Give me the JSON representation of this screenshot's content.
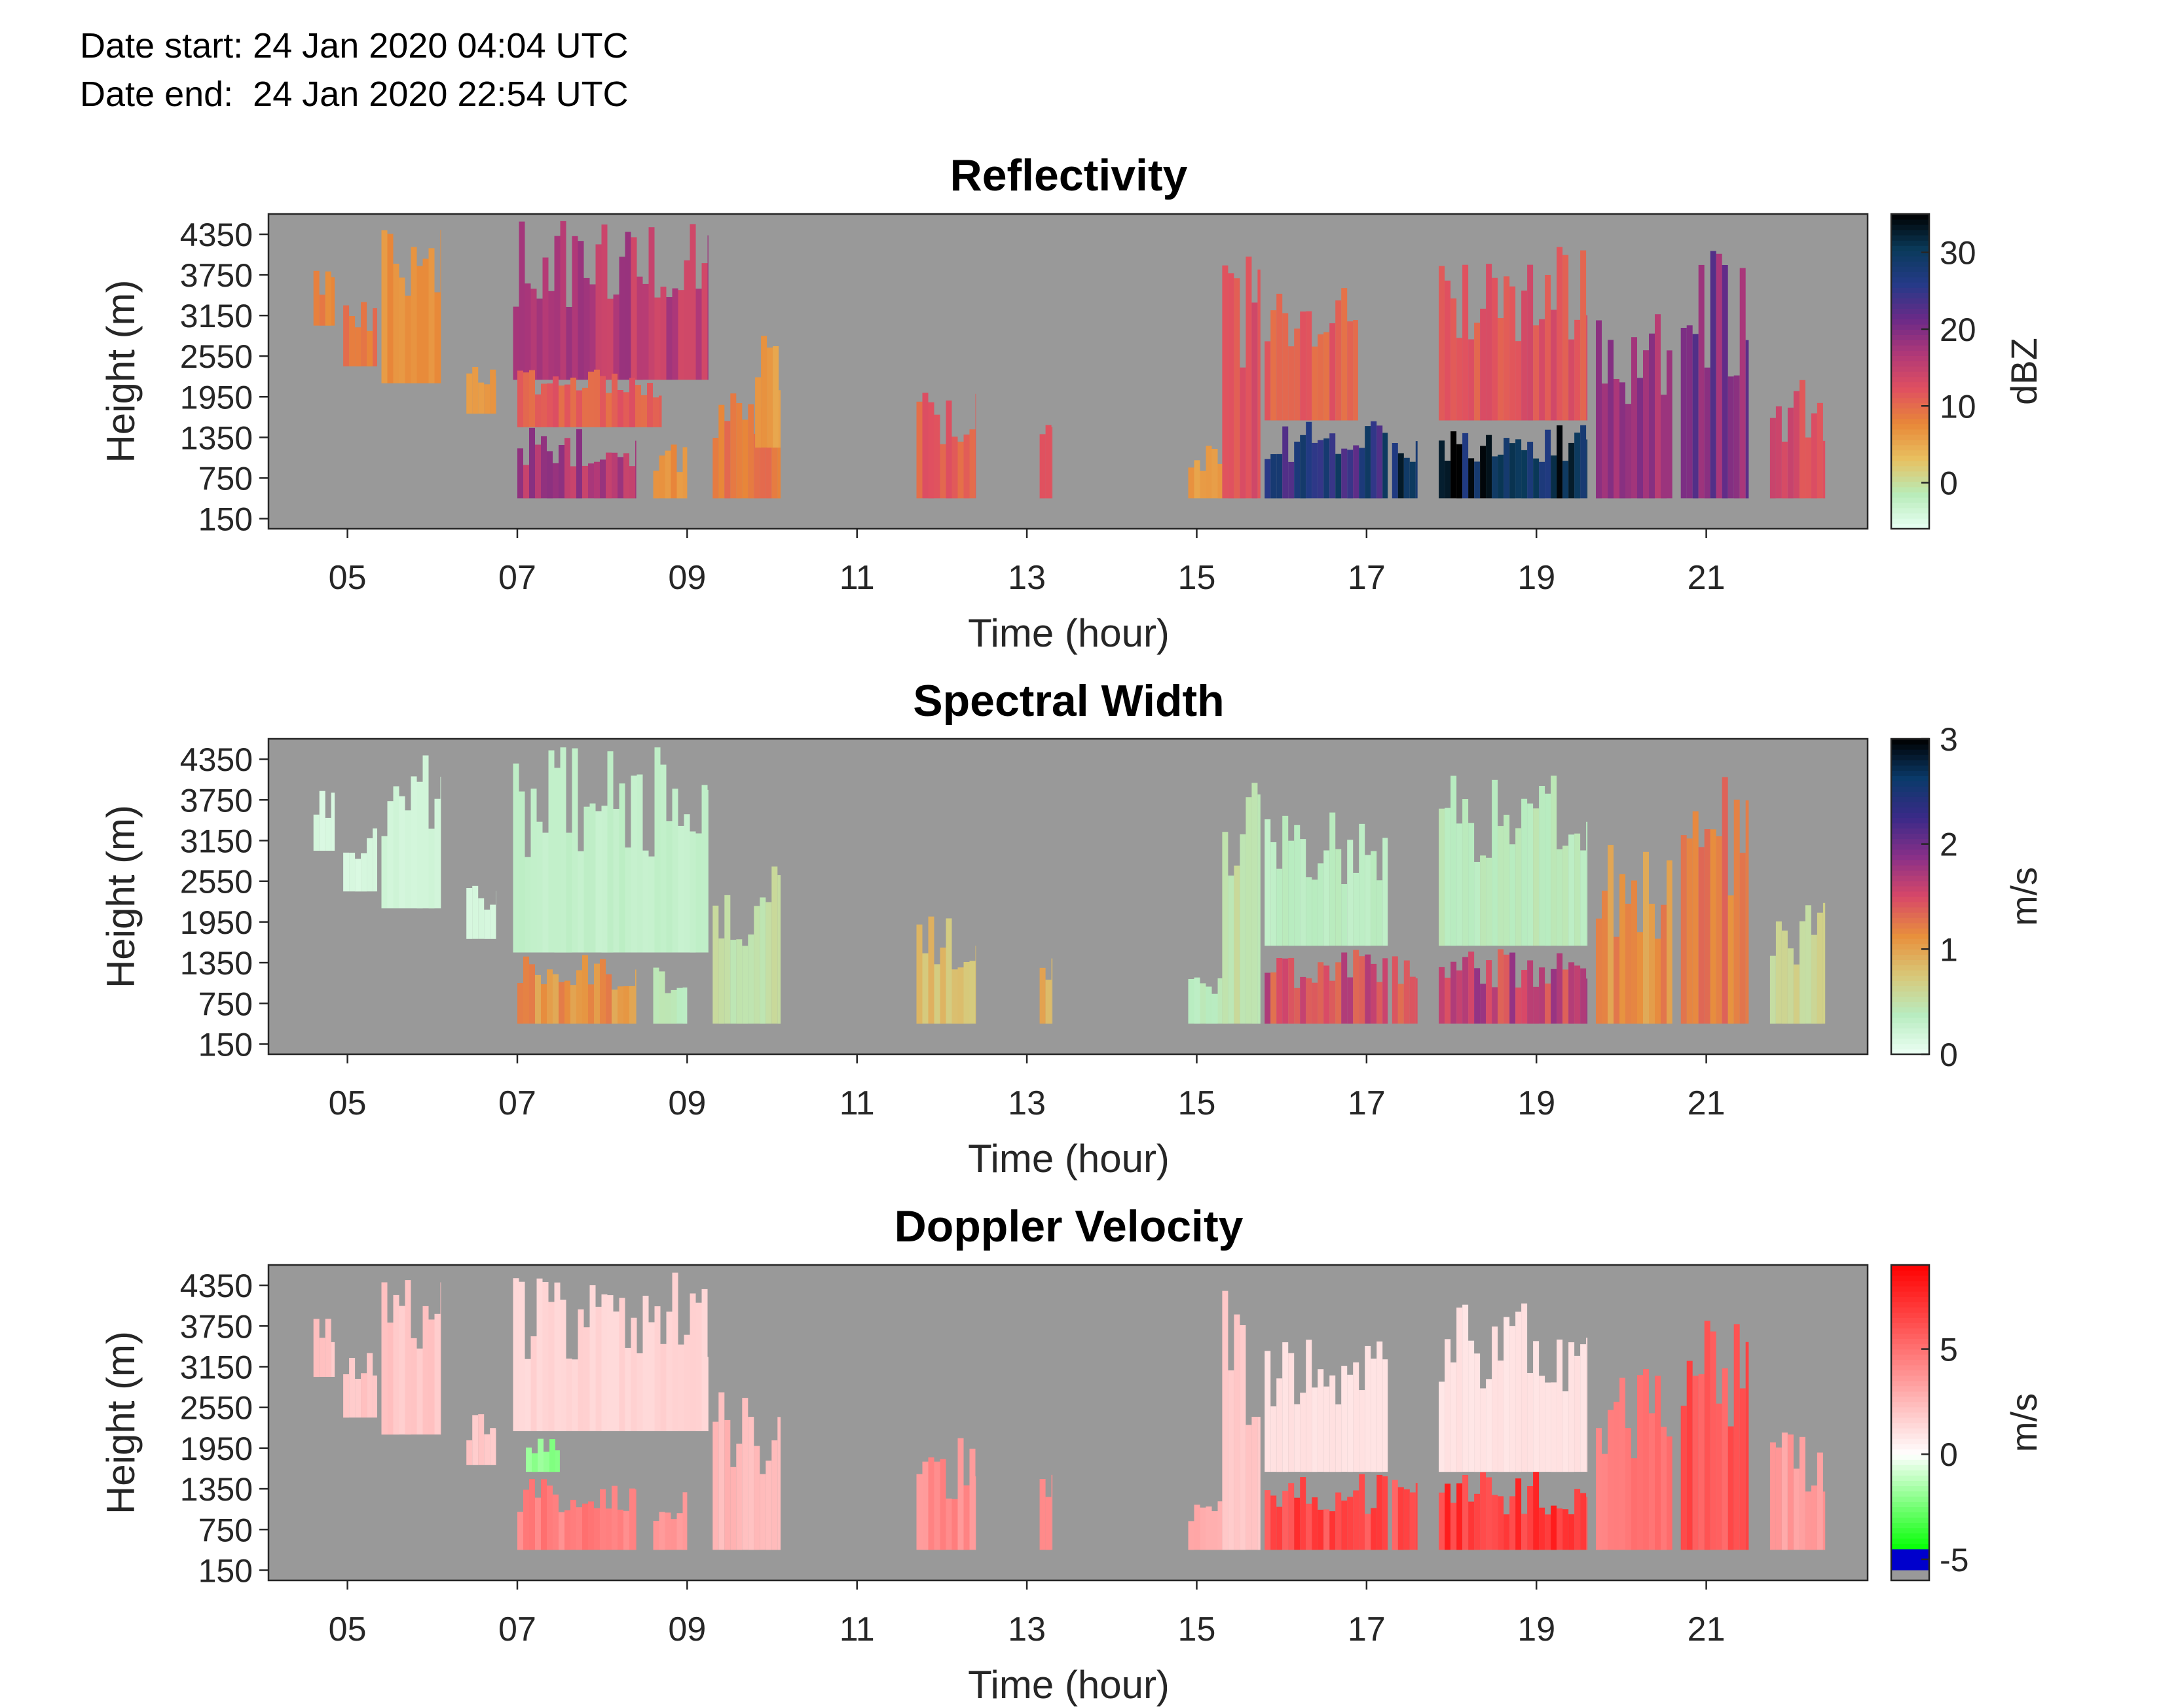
{
  "header": {
    "date_start": "Date start: 24 Jan 2020 04:04 UTC",
    "date_end": "Date end:  24 Jan 2020 22:54 UTC"
  },
  "colors": {
    "background_no_data": "#999999",
    "reflectivity_colormap": [
      "#e8fff4",
      "#b8ecb8",
      "#e8c060",
      "#e88838",
      "#e05060",
      "#b03878",
      "#6a2a88",
      "#243a88",
      "#0a3a5a",
      "#000000"
    ],
    "spectral_width_colormap": [
      "#ecfff4",
      "#b8ecc0",
      "#d8c878",
      "#e8903c",
      "#d84868",
      "#8a3088",
      "#3a2a88",
      "#0a3a6a",
      "#000000"
    ],
    "doppler_colormap": [
      "#999999",
      "#0000cc",
      "#00ff00",
      "#ffffff",
      "#ff0000"
    ]
  },
  "chart_data": [
    {
      "type": "heatmap",
      "title": "Reflectivity",
      "xlabel": "Time (hour)",
      "ylabel": "Height (m)",
      "x_tick_labels": [
        "05",
        "07",
        "09",
        "11",
        "13",
        "15",
        "17",
        "19",
        "21"
      ],
      "x_ticks": [
        5,
        7,
        9,
        11,
        13,
        15,
        17,
        19,
        21
      ],
      "xlim": [
        4.07,
        22.9
      ],
      "y_tick_labels": [
        "4350",
        "3750",
        "3150",
        "2550",
        "1950",
        "1350",
        "750",
        "150"
      ],
      "y_ticks": [
        4350,
        3750,
        3150,
        2550,
        1950,
        1350,
        750,
        150
      ],
      "ylim": [
        0,
        4650
      ],
      "colorbar": {
        "label": "dBZ",
        "tick_labels": [
          "0",
          "10",
          "20",
          "30"
        ],
        "ticks": [
          0,
          10,
          20,
          30
        ],
        "range": [
          -6,
          35
        ]
      },
      "echo_regions": [
        {
          "t_start": 4.6,
          "t_end": 4.85,
          "h_low": 3000,
          "h_high": 3900,
          "value": 8
        },
        {
          "t_start": 4.95,
          "t_end": 5.35,
          "h_low": 2400,
          "h_high": 3400,
          "value": 9
        },
        {
          "t_start": 5.4,
          "t_end": 6.1,
          "h_low": 2150,
          "h_high": 4500,
          "value": 7
        },
        {
          "t_start": 6.4,
          "t_end": 6.75,
          "h_low": 1700,
          "h_high": 2500,
          "value": 6
        },
        {
          "t_start": 6.95,
          "t_end": 9.25,
          "h_low": 2200,
          "h_high": 4550,
          "value": 16
        },
        {
          "t_start": 7.0,
          "t_end": 8.7,
          "h_low": 1500,
          "h_high": 2400,
          "value": 11
        },
        {
          "t_start": 7.0,
          "t_end": 8.4,
          "h_low": 450,
          "h_high": 1500,
          "value": 17
        },
        {
          "t_start": 8.6,
          "t_end": 9.0,
          "h_low": 450,
          "h_high": 1300,
          "value": 7
        },
        {
          "t_start": 9.3,
          "t_end": 10.1,
          "h_low": 450,
          "h_high": 2000,
          "value": 9
        },
        {
          "t_start": 9.8,
          "t_end": 10.1,
          "h_low": 1200,
          "h_high": 2900,
          "value": 6
        },
        {
          "t_start": 11.7,
          "t_end": 12.4,
          "h_low": 450,
          "h_high": 2100,
          "value": 11
        },
        {
          "t_start": 13.15,
          "t_end": 13.3,
          "h_low": 450,
          "h_high": 1600,
          "value": 12
        },
        {
          "t_start": 14.9,
          "t_end": 15.3,
          "h_low": 450,
          "h_high": 1300,
          "value": 6
        },
        {
          "t_start": 15.3,
          "t_end": 15.75,
          "h_low": 450,
          "h_high": 4500,
          "value": 12
        },
        {
          "t_start": 15.8,
          "t_end": 16.9,
          "h_low": 1600,
          "h_high": 3600,
          "value": 11
        },
        {
          "t_start": 15.8,
          "t_end": 17.25,
          "h_low": 450,
          "h_high": 1600,
          "value": 26
        },
        {
          "t_start": 17.3,
          "t_end": 17.6,
          "h_low": 450,
          "h_high": 1500,
          "value": 29
        },
        {
          "t_start": 17.85,
          "t_end": 19.6,
          "h_low": 1600,
          "h_high": 4200,
          "value": 12
        },
        {
          "t_start": 17.85,
          "t_end": 19.6,
          "h_low": 450,
          "h_high": 1600,
          "value": 31
        },
        {
          "t_start": 19.7,
          "t_end": 20.6,
          "h_low": 450,
          "h_high": 3200,
          "value": 18
        },
        {
          "t_start": 20.7,
          "t_end": 21.5,
          "h_low": 450,
          "h_high": 4200,
          "value": 20
        },
        {
          "t_start": 21.75,
          "t_end": 22.4,
          "h_low": 450,
          "h_high": 2300,
          "value": 13
        }
      ]
    },
    {
      "type": "heatmap",
      "title": "Spectral Width",
      "xlabel": "Time (hour)",
      "ylabel": "Height (m)",
      "x_tick_labels": [
        "05",
        "07",
        "09",
        "11",
        "13",
        "15",
        "17",
        "19",
        "21"
      ],
      "x_ticks": [
        5,
        7,
        9,
        11,
        13,
        15,
        17,
        19,
        21
      ],
      "xlim": [
        4.07,
        22.9
      ],
      "y_tick_labels": [
        "4350",
        "3750",
        "3150",
        "2550",
        "1950",
        "1350",
        "750",
        "150"
      ],
      "y_ticks": [
        4350,
        3750,
        3150,
        2550,
        1950,
        1350,
        750,
        150
      ],
      "ylim": [
        0,
        4650
      ],
      "colorbar": {
        "label": "m/s",
        "tick_labels": [
          "0",
          "1",
          "2",
          "3"
        ],
        "ticks": [
          0,
          1,
          2,
          3
        ],
        "range": [
          0,
          3
        ]
      },
      "echo_regions": [
        {
          "t_start": 4.6,
          "t_end": 4.85,
          "h_low": 3000,
          "h_high": 3900,
          "value": 0.15
        },
        {
          "t_start": 4.95,
          "t_end": 5.35,
          "h_low": 2400,
          "h_high": 3400,
          "value": 0.15
        },
        {
          "t_start": 5.4,
          "t_end": 6.1,
          "h_low": 2150,
          "h_high": 4500,
          "value": 0.2
        },
        {
          "t_start": 6.4,
          "t_end": 6.75,
          "h_low": 1700,
          "h_high": 2500,
          "value": 0.15
        },
        {
          "t_start": 6.95,
          "t_end": 9.25,
          "h_low": 1500,
          "h_high": 4550,
          "value": 0.3
        },
        {
          "t_start": 7.0,
          "t_end": 8.4,
          "h_low": 450,
          "h_high": 1500,
          "value": 1.1
        },
        {
          "t_start": 8.6,
          "t_end": 9.0,
          "h_low": 450,
          "h_high": 1300,
          "value": 0.4
        },
        {
          "t_start": 9.3,
          "t_end": 10.1,
          "h_low": 450,
          "h_high": 2900,
          "value": 0.5
        },
        {
          "t_start": 11.7,
          "t_end": 12.4,
          "h_low": 450,
          "h_high": 2100,
          "value": 0.8
        },
        {
          "t_start": 13.15,
          "t_end": 13.3,
          "h_low": 450,
          "h_high": 1600,
          "value": 0.9
        },
        {
          "t_start": 14.9,
          "t_end": 15.3,
          "h_low": 450,
          "h_high": 1300,
          "value": 0.4
        },
        {
          "t_start": 15.3,
          "t_end": 15.75,
          "h_low": 450,
          "h_high": 4500,
          "value": 0.5
        },
        {
          "t_start": 15.8,
          "t_end": 17.25,
          "h_low": 1600,
          "h_high": 3600,
          "value": 0.35
        },
        {
          "t_start": 15.8,
          "t_end": 17.25,
          "h_low": 450,
          "h_high": 1600,
          "value": 1.5
        },
        {
          "t_start": 17.3,
          "t_end": 17.6,
          "h_low": 450,
          "h_high": 1500,
          "value": 1.4
        },
        {
          "t_start": 17.85,
          "t_end": 19.6,
          "h_low": 1600,
          "h_high": 4200,
          "value": 0.4
        },
        {
          "t_start": 17.85,
          "t_end": 19.6,
          "h_low": 450,
          "h_high": 1600,
          "value": 1.6
        },
        {
          "t_start": 19.7,
          "t_end": 20.6,
          "h_low": 450,
          "h_high": 3200,
          "value": 1.1
        },
        {
          "t_start": 20.7,
          "t_end": 21.5,
          "h_low": 450,
          "h_high": 4200,
          "value": 1.2
        },
        {
          "t_start": 21.75,
          "t_end": 22.4,
          "h_low": 450,
          "h_high": 2300,
          "value": 0.6
        }
      ]
    },
    {
      "type": "heatmap",
      "title": "Doppler Velocity",
      "xlabel": "Time (hour)",
      "ylabel": "Height (m)",
      "x_tick_labels": [
        "05",
        "07",
        "09",
        "11",
        "13",
        "15",
        "17",
        "19",
        "21"
      ],
      "x_ticks": [
        5,
        7,
        9,
        11,
        13,
        15,
        17,
        19,
        21
      ],
      "xlim": [
        4.07,
        22.9
      ],
      "y_tick_labels": [
        "4350",
        "3750",
        "3150",
        "2550",
        "1950",
        "1350",
        "750",
        "150"
      ],
      "y_ticks": [
        4350,
        3750,
        3150,
        2550,
        1950,
        1350,
        750,
        150
      ],
      "ylim": [
        0,
        4650
      ],
      "colorbar": {
        "label": "m/s",
        "tick_labels": [
          "-5",
          "0",
          "5"
        ],
        "ticks": [
          -5,
          0,
          5
        ],
        "range": [
          -6,
          9
        ]
      },
      "echo_regions": [
        {
          "t_start": 4.6,
          "t_end": 4.85,
          "h_low": 3000,
          "h_high": 3900,
          "value": 2.0
        },
        {
          "t_start": 4.95,
          "t_end": 5.35,
          "h_low": 2400,
          "h_high": 3400,
          "value": 2.0
        },
        {
          "t_start": 5.4,
          "t_end": 6.1,
          "h_low": 2150,
          "h_high": 4500,
          "value": 2.0
        },
        {
          "t_start": 6.4,
          "t_end": 6.75,
          "h_low": 1700,
          "h_high": 2500,
          "value": 2.0
        },
        {
          "t_start": 6.95,
          "t_end": 9.25,
          "h_low": 2200,
          "h_high": 4550,
          "value": 1.5
        },
        {
          "t_start": 7.1,
          "t_end": 7.5,
          "h_low": 1600,
          "h_high": 2100,
          "value": -2.0
        },
        {
          "t_start": 7.0,
          "t_end": 8.4,
          "h_low": 450,
          "h_high": 1500,
          "value": 4.5
        },
        {
          "t_start": 8.6,
          "t_end": 9.0,
          "h_low": 450,
          "h_high": 1300,
          "value": 3.5
        },
        {
          "t_start": 9.3,
          "t_end": 10.1,
          "h_low": 450,
          "h_high": 2900,
          "value": 2.5
        },
        {
          "t_start": 11.7,
          "t_end": 12.4,
          "h_low": 450,
          "h_high": 2100,
          "value": 4.0
        },
        {
          "t_start": 13.15,
          "t_end": 13.3,
          "h_low": 450,
          "h_high": 1600,
          "value": 4.0
        },
        {
          "t_start": 14.9,
          "t_end": 15.3,
          "h_low": 450,
          "h_high": 1300,
          "value": 3.0
        },
        {
          "t_start": 15.3,
          "t_end": 15.75,
          "h_low": 450,
          "h_high": 4500,
          "value": 2.0
        },
        {
          "t_start": 15.8,
          "t_end": 17.25,
          "h_low": 1600,
          "h_high": 3600,
          "value": 1.0
        },
        {
          "t_start": 15.8,
          "t_end": 17.25,
          "h_low": 450,
          "h_high": 1600,
          "value": 6.5
        },
        {
          "t_start": 17.3,
          "t_end": 17.6,
          "h_low": 450,
          "h_high": 1500,
          "value": 6.0
        },
        {
          "t_start": 17.85,
          "t_end": 19.6,
          "h_low": 1600,
          "h_high": 4200,
          "value": 1.0
        },
        {
          "t_start": 17.85,
          "t_end": 19.6,
          "h_low": 450,
          "h_high": 1600,
          "value": 7.0
        },
        {
          "t_start": 19.7,
          "t_end": 20.6,
          "h_low": 450,
          "h_high": 3200,
          "value": 5.0
        },
        {
          "t_start": 20.7,
          "t_end": 21.5,
          "h_low": 450,
          "h_high": 4200,
          "value": 6.0
        },
        {
          "t_start": 21.75,
          "t_end": 22.4,
          "h_low": 450,
          "h_high": 2300,
          "value": 3.5
        }
      ]
    }
  ]
}
